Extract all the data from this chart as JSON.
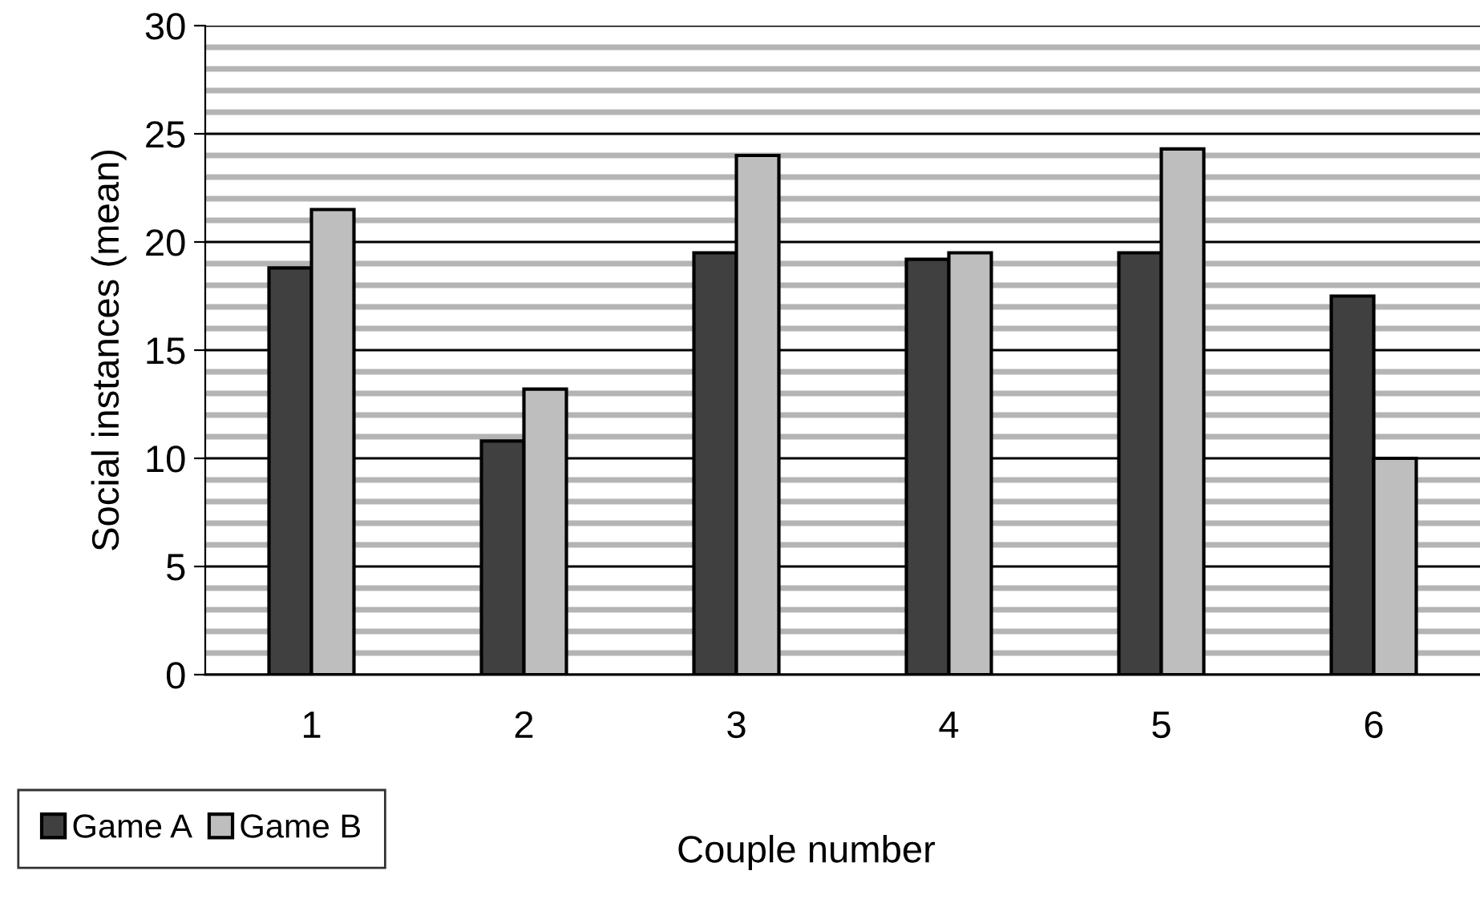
{
  "chart_data": {
    "type": "bar",
    "xlabel": "Couple number",
    "ylabel": "Social instances (mean)",
    "categories": [
      "1",
      "2",
      "3",
      "4",
      "5",
      "6"
    ],
    "series": [
      {
        "name": "Game A",
        "color": "#404040",
        "values": [
          18.8,
          10.8,
          19.5,
          19.2,
          19.5,
          17.5
        ]
      },
      {
        "name": "Game B",
        "color": "#bebebe",
        "values": [
          21.5,
          13.2,
          24.0,
          19.5,
          24.3,
          10.0
        ]
      }
    ],
    "ylim": [
      0,
      30
    ],
    "yticks": [
      0,
      5,
      10,
      15,
      20,
      25,
      30
    ],
    "grid": "y",
    "legend": "bottom left"
  }
}
